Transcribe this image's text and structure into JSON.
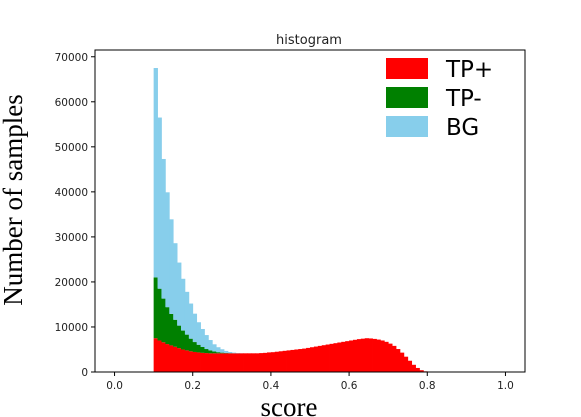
{
  "chart_data": {
    "type": "bar",
    "subtype": "stacked-histogram",
    "title": "histogram",
    "xlabel": "score",
    "ylabel": "Number of samples",
    "xlim": [
      -0.05,
      1.05
    ],
    "ylim": [
      0,
      71500
    ],
    "xticks": [
      0.0,
      0.2,
      0.4,
      0.6,
      0.8,
      1.0
    ],
    "xtick_labels": [
      "0.0",
      "0.2",
      "0.4",
      "0.6",
      "0.8",
      "1.0"
    ],
    "yticks": [
      0,
      10000,
      20000,
      30000,
      40000,
      50000,
      60000,
      70000
    ],
    "ytick_labels": [
      "0",
      "10000",
      "20000",
      "30000",
      "40000",
      "50000",
      "60000",
      "70000"
    ],
    "grid": false,
    "legend_position": "top-right",
    "bin_start": 0.1,
    "bin_width": 0.01,
    "series": [
      {
        "name": "TP+",
        "color": "#ff0000",
        "values": [
          7500,
          7000,
          6600,
          6200,
          5900,
          5600,
          5300,
          5000,
          4800,
          4600,
          4450,
          4350,
          4250,
          4200,
          4150,
          4150,
          4150,
          4150,
          4150,
          4150,
          4150,
          4150,
          4150,
          4150,
          4150,
          4150,
          4150,
          4200,
          4250,
          4350,
          4400,
          4500,
          4600,
          4700,
          4800,
          4900,
          5000,
          5100,
          5200,
          5350,
          5500,
          5650,
          5800,
          5950,
          6100,
          6250,
          6400,
          6550,
          6700,
          6850,
          7000,
          7150,
          7300,
          7400,
          7500,
          7450,
          7350,
          7200,
          7000,
          6700,
          6300,
          5800,
          5100,
          4300,
          3400,
          2500,
          1600,
          900,
          400,
          150,
          50,
          0,
          0,
          0,
          0,
          0,
          0,
          0,
          0,
          0
        ]
      },
      {
        "name": "TP-",
        "color": "#008000",
        "values": [
          13500,
          11500,
          9700,
          8200,
          7000,
          6000,
          5000,
          4200,
          3500,
          2800,
          2200,
          1700,
          1300,
          900,
          650,
          400,
          250,
          150,
          80,
          40,
          20,
          10,
          0,
          0,
          0,
          0,
          0,
          0,
          0,
          0,
          0,
          0,
          0,
          0,
          0,
          0,
          0,
          0,
          0,
          0,
          0,
          0,
          0,
          0,
          0,
          0,
          0,
          0,
          0,
          0,
          0,
          0,
          0,
          0,
          0,
          0,
          0,
          0,
          0,
          0,
          0,
          0,
          0,
          0,
          0,
          0,
          0,
          0,
          0,
          0,
          0,
          0,
          0,
          0,
          0,
          0,
          0,
          0,
          0,
          0
        ]
      },
      {
        "name": "BG",
        "color": "#87ceeb",
        "values": [
          46500,
          38000,
          31000,
          25500,
          21000,
          17000,
          14000,
          11500,
          9500,
          7800,
          6300,
          5000,
          4000,
          3100,
          2300,
          1600,
          1100,
          750,
          450,
          250,
          130,
          60,
          20,
          0,
          0,
          0,
          0,
          0,
          0,
          0,
          0,
          0,
          0,
          0,
          0,
          0,
          0,
          0,
          0,
          0,
          0,
          0,
          0,
          0,
          0,
          0,
          0,
          0,
          0,
          0,
          0,
          0,
          0,
          0,
          0,
          0,
          0,
          0,
          0,
          0,
          0,
          0,
          0,
          0,
          0,
          0,
          0,
          0,
          0,
          0,
          0,
          0,
          0,
          0,
          0,
          0,
          0,
          0,
          0,
          0
        ]
      }
    ]
  }
}
